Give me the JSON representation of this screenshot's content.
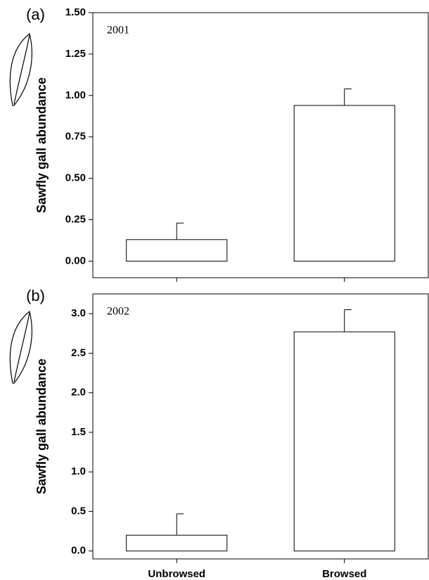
{
  "chart_data": [
    {
      "type": "bar",
      "panel_label": "(a)",
      "annotation": "2001",
      "ylabel": "Sawfly gall abundance",
      "categories": [
        null,
        null
      ],
      "values": [
        0.13,
        0.94
      ],
      "errors": [
        0.1,
        0.1
      ],
      "color": "#ffffff",
      "ylim": [
        -0.1,
        1.5
      ],
      "yticks": [
        {
          "value": 0,
          "label": "0.00"
        },
        {
          "value": 0.25,
          "label": "0.25"
        },
        {
          "value": 0.5,
          "label": "0.50"
        },
        {
          "value": 0.75,
          "label": "0.75"
        },
        {
          "value": 1,
          "label": "1.00"
        },
        {
          "value": 1.25,
          "label": "1.25"
        },
        {
          "value": 1.5,
          "label": "1.50"
        }
      ]
    },
    {
      "type": "bar",
      "panel_label": "(b)",
      "annotation": "2002",
      "ylabel": "Sawfly gall abundance",
      "categories": [
        "Unbrowsed",
        "Browsed"
      ],
      "values": [
        0.2,
        2.77
      ],
      "errors": [
        0.27,
        0.28
      ],
      "color": "#ffffff",
      "ylim": [
        -0.1,
        3.25
      ],
      "yticks": [
        {
          "value": 0,
          "label": "0.0"
        },
        {
          "value": 0.5,
          "label": "0.5"
        },
        {
          "value": 1,
          "label": "1.0"
        },
        {
          "value": 1.5,
          "label": "1.5"
        },
        {
          "value": 2,
          "label": "2.0"
        },
        {
          "value": 2.5,
          "label": "2.5"
        },
        {
          "value": 3,
          "label": "3.0"
        }
      ]
    }
  ]
}
